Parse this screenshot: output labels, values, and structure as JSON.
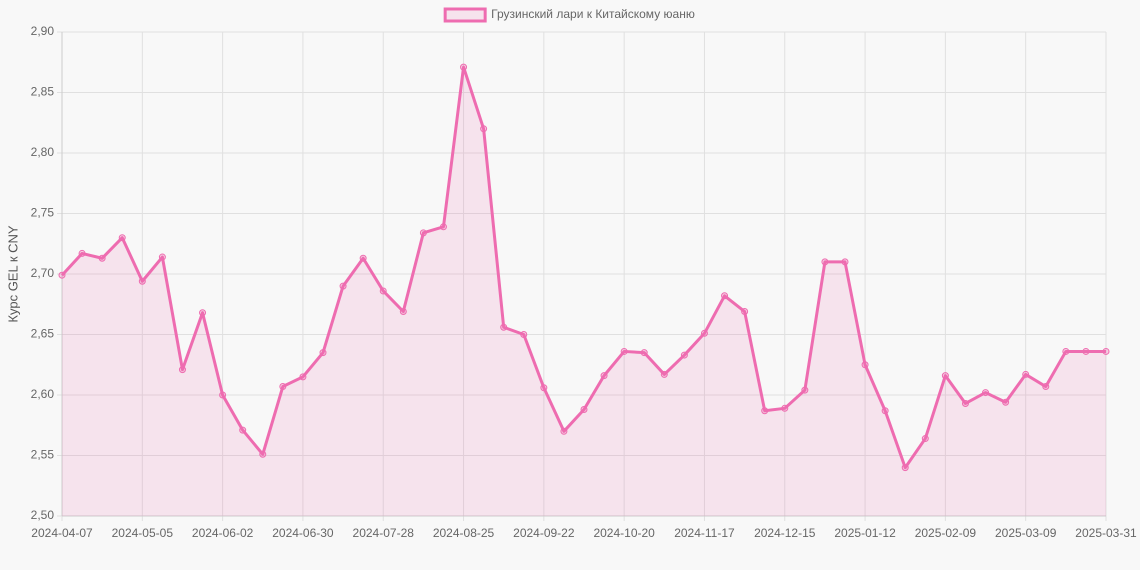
{
  "chart_data": {
    "type": "line",
    "y_label": "Курс GEL к CNY",
    "legend": "top",
    "grid": true,
    "fill": true,
    "categories": [
      "2024-04-07",
      null,
      null,
      null,
      "2024-05-05",
      null,
      null,
      null,
      "2024-06-02",
      null,
      null,
      null,
      "2024-06-30",
      null,
      null,
      null,
      "2024-07-28",
      null,
      null,
      null,
      "2024-08-25",
      null,
      null,
      null,
      "2024-09-22",
      null,
      null,
      null,
      "2024-10-20",
      null,
      null,
      null,
      "2024-11-17",
      null,
      null,
      null,
      "2024-12-15",
      null,
      null,
      null,
      "2025-01-12",
      null,
      null,
      null,
      "2025-02-09",
      null,
      null,
      null,
      "2025-03-09",
      null,
      null,
      null,
      "2025-03-31"
    ],
    "series": [
      {
        "name": "Грузинский лари к Китайскому юаню",
        "color": "#ee6cb0",
        "values": [
          2.699,
          2.717,
          2.713,
          2.73,
          2.694,
          2.714,
          2.621,
          2.668,
          2.6,
          2.571,
          2.551,
          2.607,
          2.615,
          2.635,
          2.69,
          2.713,
          2.686,
          2.669,
          2.734,
          2.739,
          2.871,
          2.82,
          2.656,
          2.65,
          2.606,
          2.57,
          2.588,
          2.616,
          2.636,
          2.635,
          2.617,
          2.633,
          2.651,
          2.682,
          2.669,
          2.587,
          2.589,
          2.604,
          2.71,
          2.71,
          2.625,
          2.587,
          2.54,
          2.564,
          2.616,
          2.593,
          2.602,
          2.594,
          2.617,
          2.607,
          2.636,
          2.636,
          2.636
        ]
      }
    ],
    "ylim": [
      2.5,
      2.9
    ],
    "yticks": [
      {
        "value": 2.5,
        "label": "2,50"
      },
      {
        "value": 2.55,
        "label": "2,55"
      },
      {
        "value": 2.6,
        "label": "2,60"
      },
      {
        "value": 2.65,
        "label": "2,65"
      },
      {
        "value": 2.7,
        "label": "2,70"
      },
      {
        "value": 2.75,
        "label": "2,75"
      },
      {
        "value": 2.8,
        "label": "2,80"
      },
      {
        "value": 2.85,
        "label": "2,85"
      },
      {
        "value": 2.9,
        "label": "2,90"
      }
    ]
  }
}
